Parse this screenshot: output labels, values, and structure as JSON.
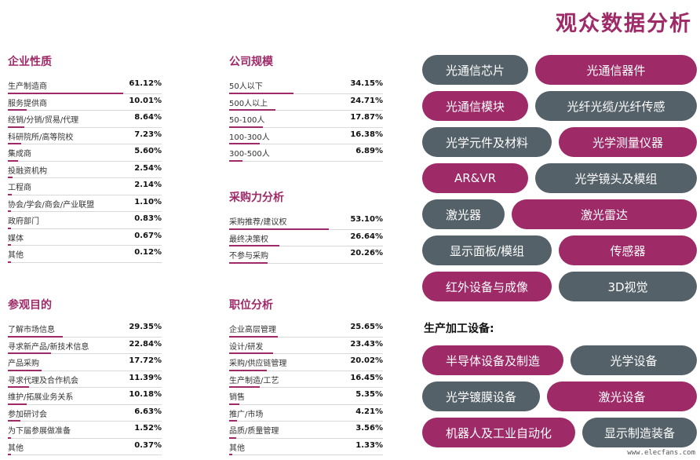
{
  "page_title": "观众数据分析",
  "panels": {
    "enterprise": {
      "title": "企业性质",
      "rows": [
        {
          "label": "生产制造商",
          "value": "61.12%",
          "pct": 61.12
        },
        {
          "label": "服务提供商",
          "value": "10.01%",
          "pct": 10.01
        },
        {
          "label": "经销/分销/贸易/代理",
          "value": "8.64%",
          "pct": 8.64
        },
        {
          "label": "科研院所/高等院校",
          "value": "7.23%",
          "pct": 7.23
        },
        {
          "label": "集成商",
          "value": "5.60%",
          "pct": 5.6
        },
        {
          "label": "投融资机构",
          "value": "2.54%",
          "pct": 2.54
        },
        {
          "label": "工程商",
          "value": "2.14%",
          "pct": 2.14
        },
        {
          "label": "协会/学会/商会/产业联盟",
          "value": "1.10%",
          "pct": 1.1
        },
        {
          "label": "政府部门",
          "value": "0.83%",
          "pct": 0.83
        },
        {
          "label": "媒体",
          "value": "0.67%",
          "pct": 0.67
        },
        {
          "label": "其他",
          "value": "0.12%",
          "pct": 0.12
        }
      ]
    },
    "scale": {
      "title": "公司规模",
      "rows": [
        {
          "label": "50人以下",
          "value": "34.15%",
          "pct": 34.15
        },
        {
          "label": "500人以上",
          "value": "24.71%",
          "pct": 24.71
        },
        {
          "label": "50-100人",
          "value": "17.87%",
          "pct": 17.87
        },
        {
          "label": "100-300人",
          "value": "16.38%",
          "pct": 16.38
        },
        {
          "label": "300-500人",
          "value": "6.89%",
          "pct": 6.89
        }
      ]
    },
    "purchasing": {
      "title": "采购力分析",
      "rows": [
        {
          "label": "采购推荐/建议权",
          "value": "53.10%",
          "pct": 53.1
        },
        {
          "label": "最终决策权",
          "value": "26.64%",
          "pct": 26.64
        },
        {
          "label": "不参与采购",
          "value": "20.26%",
          "pct": 20.26
        }
      ]
    },
    "purpose": {
      "title": "参观目的",
      "rows": [
        {
          "label": "了解市场信息",
          "value": "29.35%",
          "pct": 29.35
        },
        {
          "label": "寻求新产品/新技术信息",
          "value": "22.84%",
          "pct": 22.84
        },
        {
          "label": "产品采购",
          "value": "17.72%",
          "pct": 17.72
        },
        {
          "label": "寻求代理及合作机会",
          "value": "11.39%",
          "pct": 11.39
        },
        {
          "label": "维护/拓展业务关系",
          "value": "10.18%",
          "pct": 10.18
        },
        {
          "label": "参加研讨会",
          "value": "6.63%",
          "pct": 6.63
        },
        {
          "label": "为下届参展做准备",
          "value": "1.52%",
          "pct": 1.52
        },
        {
          "label": "其他",
          "value": "0.37%",
          "pct": 0.37
        }
      ]
    },
    "position": {
      "title": "职位分析",
      "rows": [
        {
          "label": "企业高层管理",
          "value": "25.65%",
          "pct": 25.65
        },
        {
          "label": "设计/研发",
          "value": "23.43%",
          "pct": 23.43
        },
        {
          "label": "采购/供应链管理",
          "value": "20.02%",
          "pct": 20.02
        },
        {
          "label": "生产制造/工艺",
          "value": "16.45%",
          "pct": 16.45
        },
        {
          "label": "销售",
          "value": "5.35%",
          "pct": 5.35
        },
        {
          "label": "推广/市场",
          "value": "4.21%",
          "pct": 4.21
        },
        {
          "label": "品质/质量管理",
          "value": "3.56%",
          "pct": 3.56
        },
        {
          "label": "其他",
          "value": "1.33%",
          "pct": 1.33
        }
      ]
    }
  },
  "product_pills": [
    [
      {
        "label": "光通信芯片",
        "color": "gray"
      },
      {
        "label": "光通信器件",
        "color": "purple"
      }
    ],
    [
      {
        "label": "光通信模块",
        "color": "purple"
      },
      {
        "label": "光纤光缆/光纤传感",
        "color": "gray"
      }
    ],
    [
      {
        "label": "光学元件及材料",
        "color": "gray"
      },
      {
        "label": "光学测量仪器",
        "color": "purple"
      }
    ],
    [
      {
        "label": "AR&VR",
        "color": "purple"
      },
      {
        "label": "光学镜头及模组",
        "color": "gray"
      }
    ],
    [
      {
        "label": "激光器",
        "color": "gray"
      },
      {
        "label": "激光雷达",
        "color": "purple"
      }
    ],
    [
      {
        "label": "显示面板/模组",
        "color": "gray"
      },
      {
        "label": "传感器",
        "color": "purple"
      }
    ],
    [
      {
        "label": "红外设备与成像",
        "color": "purple"
      },
      {
        "label": "3D视觉",
        "color": "gray"
      }
    ]
  ],
  "equipment_label": "生产加工设备:",
  "equipment_pills": [
    [
      {
        "label": "半导体设备及制造",
        "color": "purple"
      },
      {
        "label": "光学设备",
        "color": "gray"
      }
    ],
    [
      {
        "label": "光学镀膜设备",
        "color": "gray"
      },
      {
        "label": "激光设备",
        "color": "purple"
      }
    ],
    [
      {
        "label": "机器人及工业自动化",
        "color": "purple"
      },
      {
        "label": "显示制造装备",
        "color": "gray"
      }
    ]
  ],
  "colors": {
    "accent": "#9e2a68",
    "gray": "#546169"
  },
  "watermark": "www.elecfans.com"
}
